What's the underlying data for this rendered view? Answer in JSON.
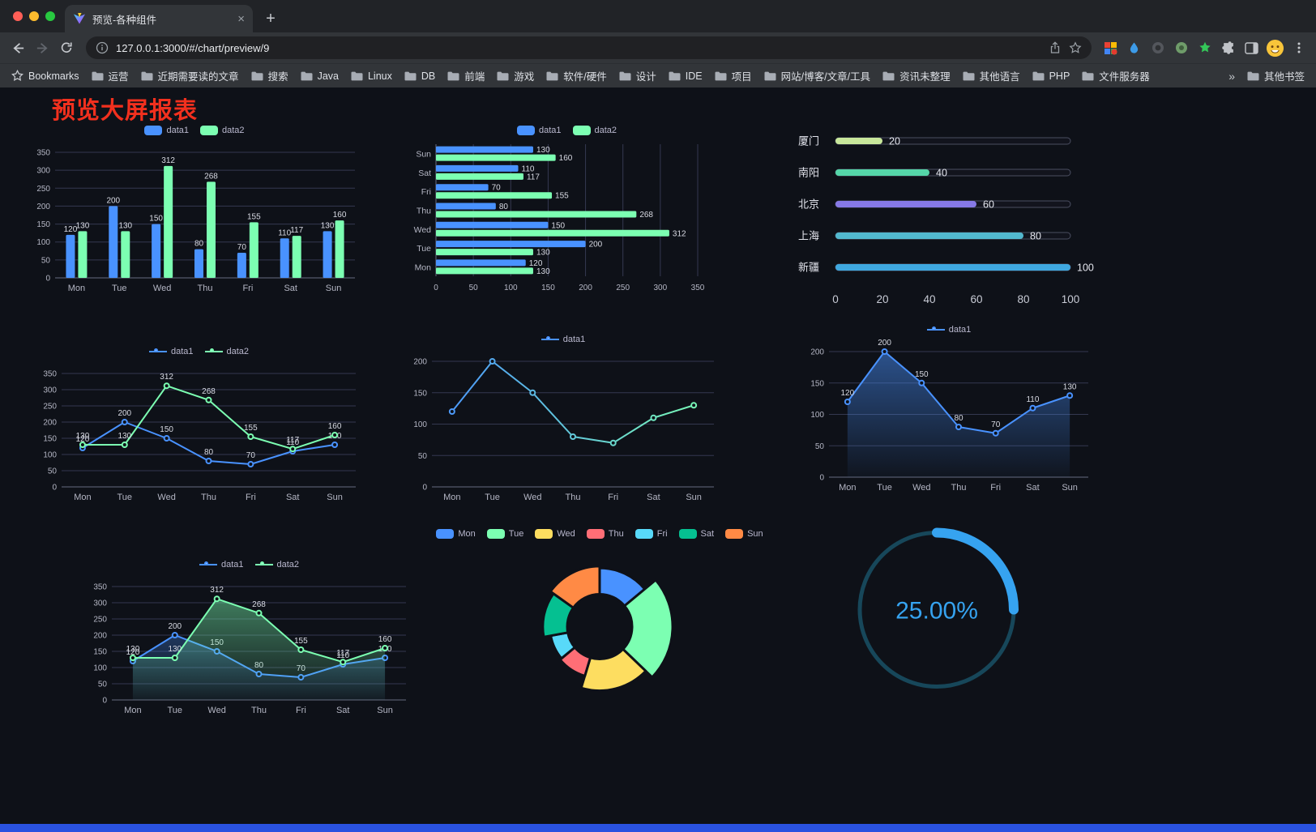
{
  "browser": {
    "tab_title": "预览-各种组件",
    "url": "127.0.0.1:3000/#/chart/preview/9",
    "bookmarks_bar": {
      "bookmarks_label": "Bookmarks",
      "folders": [
        "运营",
        "近期需要读的文章",
        "搜索",
        "Java",
        "Linux",
        "DB",
        "前端",
        "游戏",
        "软件/硬件",
        "设计",
        "IDE",
        "项目",
        "网站/博客/文章/工具",
        "资讯未整理",
        "其他语言",
        "PHP",
        "文件服务器"
      ],
      "overflow": "»",
      "other_bookmarks": "其他书签"
    }
  },
  "page": {
    "title": "预览大屏报表"
  },
  "chart_data": [
    {
      "name": "bar-chart",
      "type": "bar",
      "legend": [
        "data1",
        "data2"
      ],
      "legend_colors": [
        "#4992ff",
        "#7cffb2"
      ],
      "legend_icon": "rect",
      "categories": [
        "Mon",
        "Tue",
        "Wed",
        "Thu",
        "Fri",
        "Sat",
        "Sun"
      ],
      "series": [
        {
          "name": "data1",
          "color": "#4992ff",
          "values": [
            120,
            200,
            150,
            80,
            70,
            110,
            130
          ]
        },
        {
          "name": "data2",
          "color": "#7cffb2",
          "values": [
            130,
            130,
            312,
            268,
            155,
            117,
            160
          ]
        }
      ],
      "ylim": [
        0,
        350
      ],
      "yticks": [
        0,
        50,
        100,
        150,
        200,
        250,
        300,
        350
      ],
      "labels": true
    },
    {
      "name": "horizontal-bar-chart",
      "type": "hbar",
      "legend": [
        "data1",
        "data2"
      ],
      "legend_colors": [
        "#4992ff",
        "#7cffb2"
      ],
      "legend_icon": "rect",
      "categories": [
        "Mon",
        "Tue",
        "Wed",
        "Thu",
        "Fri",
        "Sat",
        "Sun"
      ],
      "series": [
        {
          "name": "data1",
          "color": "#4992ff",
          "values": [
            120,
            200,
            150,
            80,
            70,
            110,
            130
          ]
        },
        {
          "name": "data2",
          "color": "#7cffb2",
          "values": [
            130,
            130,
            312,
            268,
            155,
            117,
            160
          ]
        }
      ],
      "xlim": [
        0,
        350
      ],
      "xticks": [
        0,
        50,
        100,
        150,
        200,
        250,
        300,
        350
      ],
      "labels": true
    },
    {
      "name": "progress-bar-chart",
      "type": "progress",
      "max": 100,
      "xticks": [
        0,
        20,
        40,
        60,
        80,
        100
      ],
      "rows": [
        {
          "label": "厦门",
          "value": 20,
          "color": "#c8e79b"
        },
        {
          "label": "南阳",
          "value": 40,
          "color": "#55d6a9"
        },
        {
          "label": "北京",
          "value": 60,
          "color": "#8679e6"
        },
        {
          "label": "上海",
          "value": 80,
          "color": "#52b8ce"
        },
        {
          "label": "新疆",
          "value": 100,
          "color": "#3fa8e0"
        }
      ]
    },
    {
      "name": "line-chart-dual",
      "type": "line",
      "legend": [
        "data1",
        "data2"
      ],
      "legend_colors": [
        "#4992ff",
        "#7cffb2"
      ],
      "legend_icon": "line",
      "categories": [
        "Mon",
        "Tue",
        "Wed",
        "Thu",
        "Fri",
        "Sat",
        "Sun"
      ],
      "series": [
        {
          "name": "data1",
          "color": "#4992ff",
          "values": [
            120,
            200,
            150,
            80,
            70,
            110,
            130
          ]
        },
        {
          "name": "data2",
          "color": "#7cffb2",
          "values": [
            130,
            130,
            312,
            268,
            155,
            117,
            160
          ]
        }
      ],
      "ylim": [
        0,
        350
      ],
      "yticks": [
        0,
        50,
        100,
        150,
        200,
        250,
        300,
        350
      ],
      "labels": true
    },
    {
      "name": "line-chart-gradient",
      "type": "line",
      "legend": [
        "data1"
      ],
      "legend_colors": [
        "#4992ff"
      ],
      "legend_icon": "line",
      "categories": [
        "Mon",
        "Tue",
        "Wed",
        "Thu",
        "Fri",
        "Sat",
        "Sun"
      ],
      "series": [
        {
          "name": "data1",
          "gradient": [
            "#4992ff",
            "#7cffb2"
          ],
          "values": [
            120,
            200,
            150,
            80,
            70,
            110,
            130
          ]
        }
      ],
      "ylim": [
        0,
        200
      ],
      "yticks": [
        0,
        50,
        100,
        150,
        200
      ],
      "labels": false
    },
    {
      "name": "area-chart",
      "type": "line",
      "legend": [
        "data1"
      ],
      "legend_colors": [
        "#4992ff"
      ],
      "legend_icon": "line",
      "categories": [
        "Mon",
        "Tue",
        "Wed",
        "Thu",
        "Fri",
        "Sat",
        "Sun"
      ],
      "series": [
        {
          "name": "data1",
          "color": "#4992ff",
          "area": true,
          "values": [
            120,
            200,
            150,
            80,
            70,
            110,
            130
          ]
        }
      ],
      "ylim": [
        0,
        200
      ],
      "yticks": [
        0,
        50,
        100,
        150,
        200
      ],
      "labels": true
    },
    {
      "name": "area-chart-dual",
      "type": "line",
      "legend": [
        "data1",
        "data2"
      ],
      "legend_colors": [
        "#4992ff",
        "#7cffb2"
      ],
      "legend_icon": "line",
      "categories": [
        "Mon",
        "Tue",
        "Wed",
        "Thu",
        "Fri",
        "Sat",
        "Sun"
      ],
      "series": [
        {
          "name": "data1",
          "color": "#4992ff",
          "area": true,
          "values": [
            120,
            200,
            150,
            80,
            70,
            110,
            130
          ]
        },
        {
          "name": "data2",
          "color": "#7cffb2",
          "area": true,
          "values": [
            130,
            130,
            312,
            268,
            155,
            117,
            160
          ]
        }
      ],
      "ylim": [
        0,
        350
      ],
      "yticks": [
        0,
        50,
        100,
        150,
        200,
        250,
        300,
        350
      ],
      "labels": true
    },
    {
      "name": "rose-pie-chart",
      "type": "rose",
      "legend": [
        "Mon",
        "Tue",
        "Wed",
        "Thu",
        "Fri",
        "Sat",
        "Sun"
      ],
      "legend_colors": [
        "#4992ff",
        "#7cffb2",
        "#fddd60",
        "#ff6e76",
        "#58d9f9",
        "#05c091",
        "#ff8a45"
      ],
      "legend_icon": "rect",
      "values": [
        120,
        200,
        150,
        80,
        70,
        110,
        130
      ],
      "colors": [
        "#4992ff",
        "#7cffb2",
        "#fddd60",
        "#ff6e76",
        "#58d9f9",
        "#05c091",
        "#ff8a45"
      ],
      "center_offset": -18
    },
    {
      "name": "gauge-chart",
      "type": "gauge",
      "value": 25,
      "display": "25.00%",
      "color": "#36a3f0",
      "track_color": "#17475a"
    }
  ]
}
